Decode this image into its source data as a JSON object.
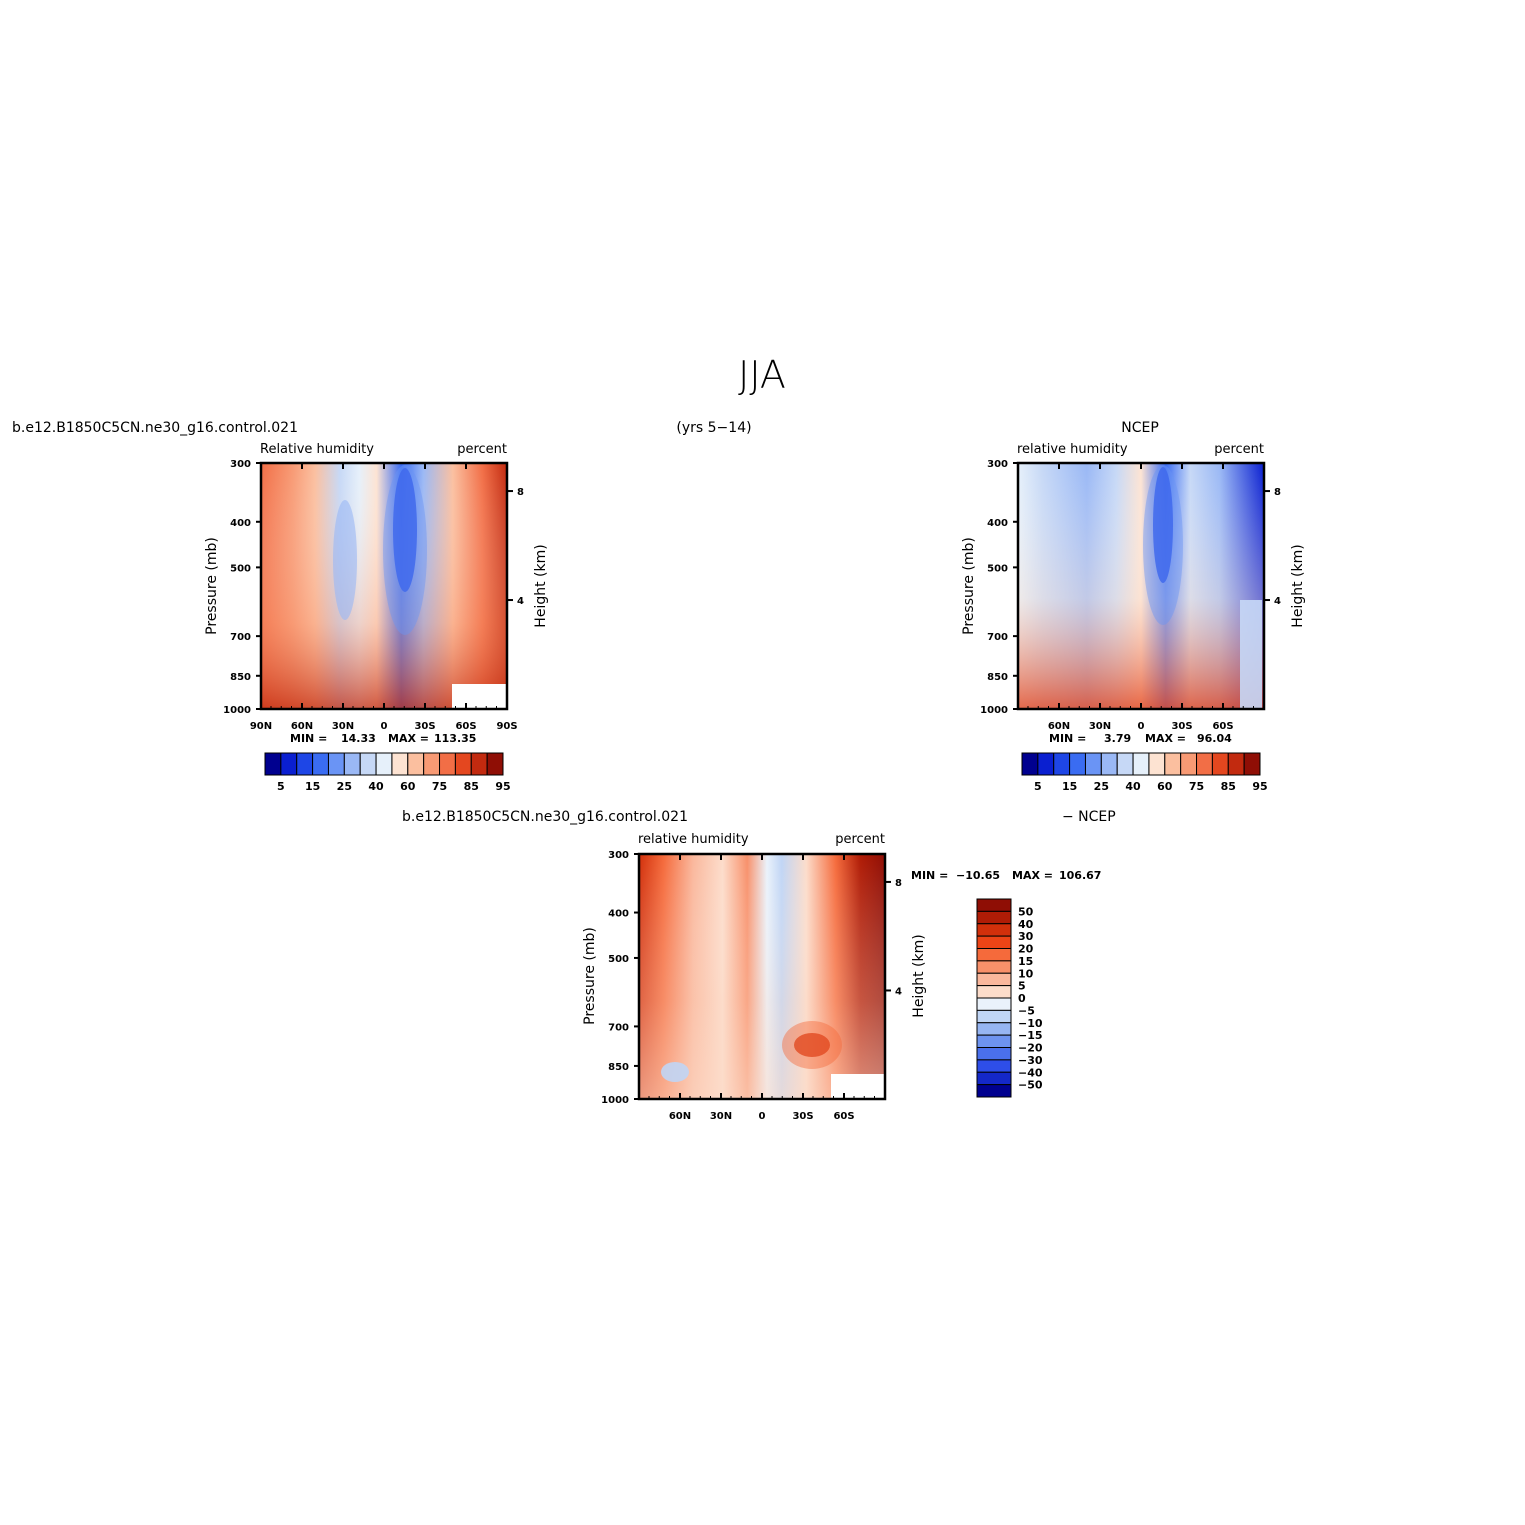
{
  "page_title": "JJA",
  "years_label": "(yrs 5−14)",
  "chart_data": [
    {
      "type": "contour",
      "case_name": "b.e12.B1850C5CN.ne30_g16.control.021",
      "left_label": "Relative humidity",
      "right_label": "percent",
      "ylabel": "Pressure (mb)",
      "ylabel_right": "Height (km)",
      "y_ticks": [
        "300",
        "400",
        "500",
        "700",
        "850",
        "1000"
      ],
      "y_right_ticks": [
        "8",
        "4"
      ],
      "x_ticks": [
        "90N",
        "60N",
        "30N",
        "0",
        "30S",
        "60S",
        "90S"
      ],
      "min_label": "MIN =",
      "min_value": "14.33",
      "max_label": "MAX =",
      "max_value": "113.35",
      "colorbar_levels": [
        "5",
        "15",
        "25",
        "40",
        "60",
        "75",
        "85",
        "95"
      ],
      "ylim": [
        1000,
        300
      ],
      "xlim": [
        90,
        -90
      ]
    },
    {
      "type": "contour",
      "case_name": "NCEP",
      "left_label": "relative humidity",
      "right_label": "percent",
      "ylabel": "Pressure (mb)",
      "ylabel_right": "Height (km)",
      "y_ticks": [
        "300",
        "400",
        "500",
        "700",
        "850",
        "1000"
      ],
      "y_right_ticks": [
        "8",
        "4"
      ],
      "x_ticks": [
        "60N",
        "30N",
        "0",
        "30S",
        "60S"
      ],
      "min_label": "MIN =",
      "min_value": "3.79",
      "max_label": "MAX =",
      "max_value": "96.04",
      "colorbar_levels": [
        "5",
        "15",
        "25",
        "40",
        "60",
        "75",
        "85",
        "95"
      ],
      "ylim": [
        1000,
        300
      ]
    },
    {
      "type": "contour",
      "case_name": "b.e12.B1850C5CN.ne30_g16.control.021",
      "diff_label": "− NCEP",
      "left_label": "relative humidity",
      "right_label": "percent",
      "ylabel": "Pressure (mb)",
      "ylabel_right": "Height (km)",
      "y_ticks": [
        "300",
        "400",
        "500",
        "700",
        "850",
        "1000"
      ],
      "y_right_ticks": [
        "8",
        "4"
      ],
      "x_ticks": [
        "60N",
        "30N",
        "0",
        "30S",
        "60S"
      ],
      "min_label": "MIN =",
      "min_value": "−10.65",
      "max_label": "MAX =",
      "max_value": "106.67",
      "colorbar_levels": [
        "50",
        "40",
        "30",
        "20",
        "15",
        "10",
        "5",
        "0",
        "−5",
        "−10",
        "−15",
        "−20",
        "−30",
        "−40",
        "−50"
      ],
      "ylim": [
        1000,
        300
      ]
    }
  ],
  "colors": {
    "palette_14": [
      "#00008f",
      "#0a1fd0",
      "#1e46e6",
      "#3a6cf2",
      "#6a94f5",
      "#9ab8f5",
      "#c6d8f6",
      "#e6f0fa",
      "#fde3d2",
      "#fbbf9f",
      "#f89a74",
      "#f26e46",
      "#e4471f",
      "#c22a0f",
      "#8f0e05"
    ],
    "palette_16": [
      "#8f0e05",
      "#b01c06",
      "#d2300b",
      "#ec4416",
      "#f56a3b",
      "#f8906a",
      "#fab79c",
      "#fcdcca",
      "#eaf2fb",
      "#c0d5f5",
      "#96b5f2",
      "#6d93ef",
      "#4a70ec",
      "#2e4ee8",
      "#1428c8",
      "#00008f"
    ]
  }
}
